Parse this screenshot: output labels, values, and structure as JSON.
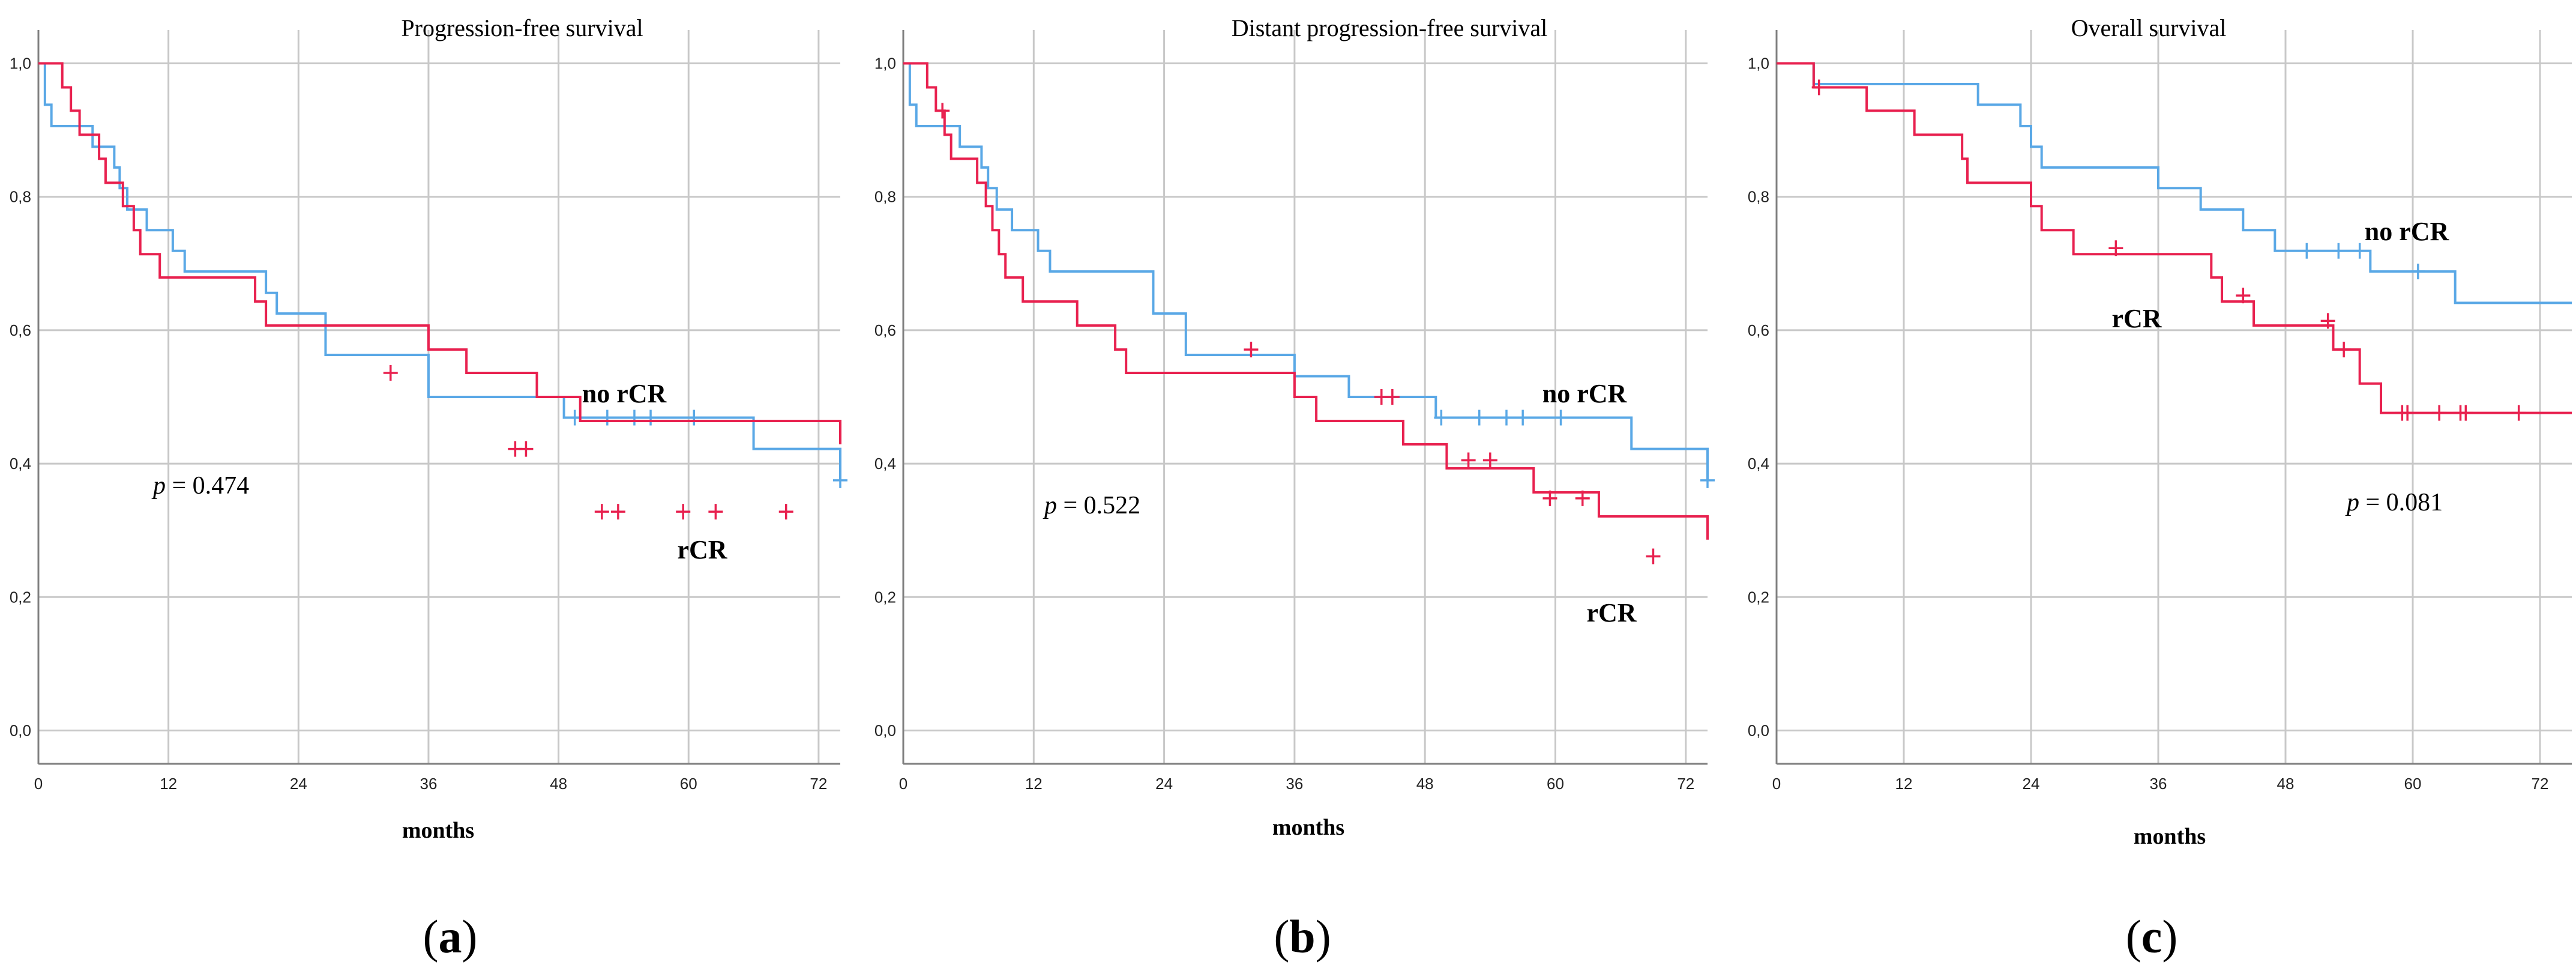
{
  "colors": {
    "no_rcr": "#5AA8E6",
    "rcr": "#E8214F",
    "grid": "#C8C8C8",
    "axis": "#7F7F7F"
  },
  "panel_letters": [
    "a",
    "b",
    "c"
  ],
  "chart_data": [
    {
      "type": "line",
      "step": true,
      "title": "Progression-free survival",
      "xlabel": "months",
      "ylabel": "",
      "xlim": [
        0,
        74
      ],
      "ylim": [
        -0.05,
        1.05
      ],
      "xticks": [
        0,
        12,
        24,
        36,
        48,
        60,
        72
      ],
      "xtick_labels": [
        "0",
        "12",
        "24",
        "36",
        "48",
        "60",
        "72"
      ],
      "yticks": [
        0,
        0.2,
        0.4,
        0.6,
        0.8,
        1.0
      ],
      "ytick_labels": [
        "0,0",
        "0,2",
        "0,4",
        "0,6",
        "0,8",
        "1,0"
      ],
      "p_prefix": "p",
      "p_value": "= 0.474",
      "series": [
        {
          "name": "no rCR",
          "label": "no rCR",
          "color": "#5AA8E6",
          "x": [
            0,
            0.6,
            1.2,
            3.2,
            5.0,
            7.0,
            7.5,
            8.2,
            10.0,
            12.4,
            13.5,
            21.0,
            22.0,
            26.5,
            36.0,
            48.5,
            66.0,
            74.0
          ],
          "y": [
            1.0,
            0.938,
            0.906,
            0.906,
            0.875,
            0.844,
            0.813,
            0.781,
            0.75,
            0.719,
            0.688,
            0.656,
            0.625,
            0.563,
            0.5,
            0.469,
            0.422,
            0.375
          ],
          "censored": [
            [
              49.5,
              0.469
            ],
            [
              52.5,
              0.469
            ],
            [
              55.0,
              0.469
            ],
            [
              56.5,
              0.469
            ],
            [
              60.5,
              0.469
            ],
            [
              74.0,
              0.375
            ]
          ]
        },
        {
          "name": "rCR",
          "label": "rCR",
          "color": "#E8214F",
          "x": [
            0,
            2.2,
            3.0,
            3.8,
            5.6,
            6.2,
            7.8,
            8.8,
            9.4,
            11.2,
            20.0,
            21.0,
            36.0,
            39.5,
            46.0,
            50.0,
            74.0
          ],
          "y": [
            1.0,
            0.964,
            0.929,
            0.893,
            0.857,
            0.821,
            0.786,
            0.75,
            0.714,
            0.679,
            0.643,
            0.607,
            0.571,
            0.536,
            0.5,
            0.464,
            0.429
          ],
          "censored": [
            [
              32.5,
              0.536
            ],
            [
              44.0,
              0.422
            ],
            [
              45.0,
              0.422
            ],
            [
              52.0,
              0.328
            ],
            [
              53.5,
              0.328
            ],
            [
              59.5,
              0.328
            ],
            [
              62.5,
              0.328
            ],
            [
              69.0,
              0.328
            ]
          ]
        }
      ]
    },
    {
      "type": "line",
      "step": true,
      "title": "Distant progression-free survival",
      "xlabel": "months",
      "ylabel": "",
      "xlim": [
        0,
        74
      ],
      "ylim": [
        -0.05,
        1.05
      ],
      "xticks": [
        0,
        12,
        24,
        36,
        48,
        60,
        72
      ],
      "xtick_labels": [
        "0",
        "12",
        "24",
        "36",
        "48",
        "60",
        "72"
      ],
      "yticks": [
        0,
        0.2,
        0.4,
        0.6,
        0.8,
        1.0
      ],
      "ytick_labels": [
        "0,0",
        "0,2",
        "0,4",
        "0,6",
        "0,8",
        "1,0"
      ],
      "p_prefix": "p",
      "p_value": "= 0.522",
      "series": [
        {
          "name": "no rCR",
          "label": "no rCR",
          "color": "#5AA8E6",
          "x": [
            0,
            0.6,
            1.2,
            3.4,
            5.2,
            7.2,
            7.8,
            8.6,
            10.0,
            12.4,
            13.5,
            23.0,
            26.0,
            36.0,
            41.0,
            49.0,
            67.0,
            74.0
          ],
          "y": [
            1.0,
            0.938,
            0.906,
            0.906,
            0.875,
            0.844,
            0.813,
            0.781,
            0.75,
            0.719,
            0.688,
            0.625,
            0.563,
            0.531,
            0.5,
            0.469,
            0.422,
            0.375
          ],
          "censored": [
            [
              49.5,
              0.469
            ],
            [
              53.0,
              0.469
            ],
            [
              55.5,
              0.469
            ],
            [
              57.0,
              0.469
            ],
            [
              60.5,
              0.469
            ],
            [
              74.0,
              0.375
            ]
          ]
        },
        {
          "name": "rCR",
          "label": "rCR",
          "color": "#E8214F",
          "x": [
            0,
            2.2,
            3.0,
            3.8,
            4.4,
            6.8,
            7.6,
            8.2,
            8.8,
            9.4,
            11.0,
            16.0,
            19.5,
            20.5,
            36.0,
            38.0,
            46.0,
            50.0,
            58.0,
            64.0,
            74.0
          ],
          "y": [
            1.0,
            0.964,
            0.929,
            0.893,
            0.857,
            0.821,
            0.786,
            0.75,
            0.714,
            0.679,
            0.643,
            0.607,
            0.571,
            0.536,
            0.5,
            0.464,
            0.429,
            0.393,
            0.357,
            0.321,
            0.286
          ],
          "censored": [
            [
              3.6,
              0.929
            ],
            [
              32.0,
              0.571
            ],
            [
              44.0,
              0.5
            ],
            [
              45.0,
              0.5
            ],
            [
              52.0,
              0.405
            ],
            [
              54.0,
              0.405
            ],
            [
              59.5,
              0.348
            ],
            [
              62.5,
              0.348
            ],
            [
              69.0,
              0.261
            ]
          ]
        }
      ]
    },
    {
      "type": "line",
      "step": true,
      "title": "Overall survival",
      "xlabel": "months",
      "ylabel": "",
      "xlim": [
        0,
        75
      ],
      "ylim": [
        -0.05,
        1.05
      ],
      "xticks": [
        0,
        12,
        24,
        36,
        48,
        60,
        72
      ],
      "xtick_labels": [
        "0",
        "12",
        "24",
        "36",
        "48",
        "60",
        "72"
      ],
      "yticks": [
        0,
        0.2,
        0.4,
        0.6,
        0.8,
        1.0
      ],
      "ytick_labels": [
        "0,0",
        "0,2",
        "0,4",
        "0,6",
        "0,8",
        "1,0"
      ],
      "p_prefix": "p",
      "p_value": "= 0.081",
      "series": [
        {
          "name": "no rCR",
          "label": "no rCR",
          "color": "#5AA8E6",
          "x": [
            0,
            3.5,
            4.5,
            19.0,
            23.0,
            24.0,
            25.0,
            36.0,
            40.0,
            44.0,
            47.0,
            56.0,
            64.0,
            75.0
          ],
          "y": [
            1.0,
            0.969,
            0.969,
            0.938,
            0.906,
            0.875,
            0.844,
            0.813,
            0.781,
            0.75,
            0.719,
            0.688,
            0.641,
            0.641
          ],
          "censored": [
            [
              50.0,
              0.719
            ],
            [
              53.0,
              0.719
            ],
            [
              55.0,
              0.719
            ],
            [
              60.5,
              0.688
            ]
          ]
        },
        {
          "name": "rCR",
          "label": "rCR",
          "color": "#E8214F",
          "x": [
            0,
            3.5,
            8.5,
            13.0,
            17.5,
            18.0,
            24.0,
            25.0,
            28.0,
            41.0,
            42.0,
            45.0,
            52.5,
            55.0,
            57.0,
            75.0
          ],
          "y": [
            1.0,
            0.964,
            0.929,
            0.893,
            0.857,
            0.821,
            0.786,
            0.75,
            0.714,
            0.679,
            0.643,
            0.607,
            0.571,
            0.52,
            0.476,
            0.476
          ],
          "censored": [
            [
              4.0,
              0.964
            ],
            [
              32.0,
              0.723
            ],
            [
              44.0,
              0.652
            ],
            [
              52.0,
              0.614
            ],
            [
              53.5,
              0.571
            ],
            [
              59.0,
              0.476
            ],
            [
              59.5,
              0.476
            ],
            [
              62.5,
              0.476
            ],
            [
              64.5,
              0.476
            ],
            [
              65.0,
              0.476
            ],
            [
              70.0,
              0.476
            ]
          ]
        }
      ]
    }
  ]
}
